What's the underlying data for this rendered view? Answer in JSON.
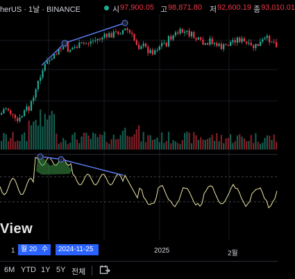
{
  "header": {
    "symbol": "herUS · 1날 · BINANCE",
    "open_label": "시",
    "open_value": "97,900.05",
    "high_label": "고",
    "high_value": "98,871.80",
    "low_label": "저",
    "low_value": "92,600.19",
    "close_label": "종",
    "close_value": "93,010.01"
  },
  "watermark": "View",
  "xaxis": {
    "labels": [
      "1",
      "2025",
      "2월"
    ],
    "crosshair_month": "월 20",
    "crosshair_day": "수",
    "crosshair_date": "2024-11-25"
  },
  "ranges": [
    "6M",
    "YTD",
    "1Y",
    "5Y",
    "전체"
  ],
  "colors": {
    "up": "#22ab94",
    "down": "#f23645",
    "rsi": "#f3e9a8",
    "trendline": "#5b7bf0"
  }
}
